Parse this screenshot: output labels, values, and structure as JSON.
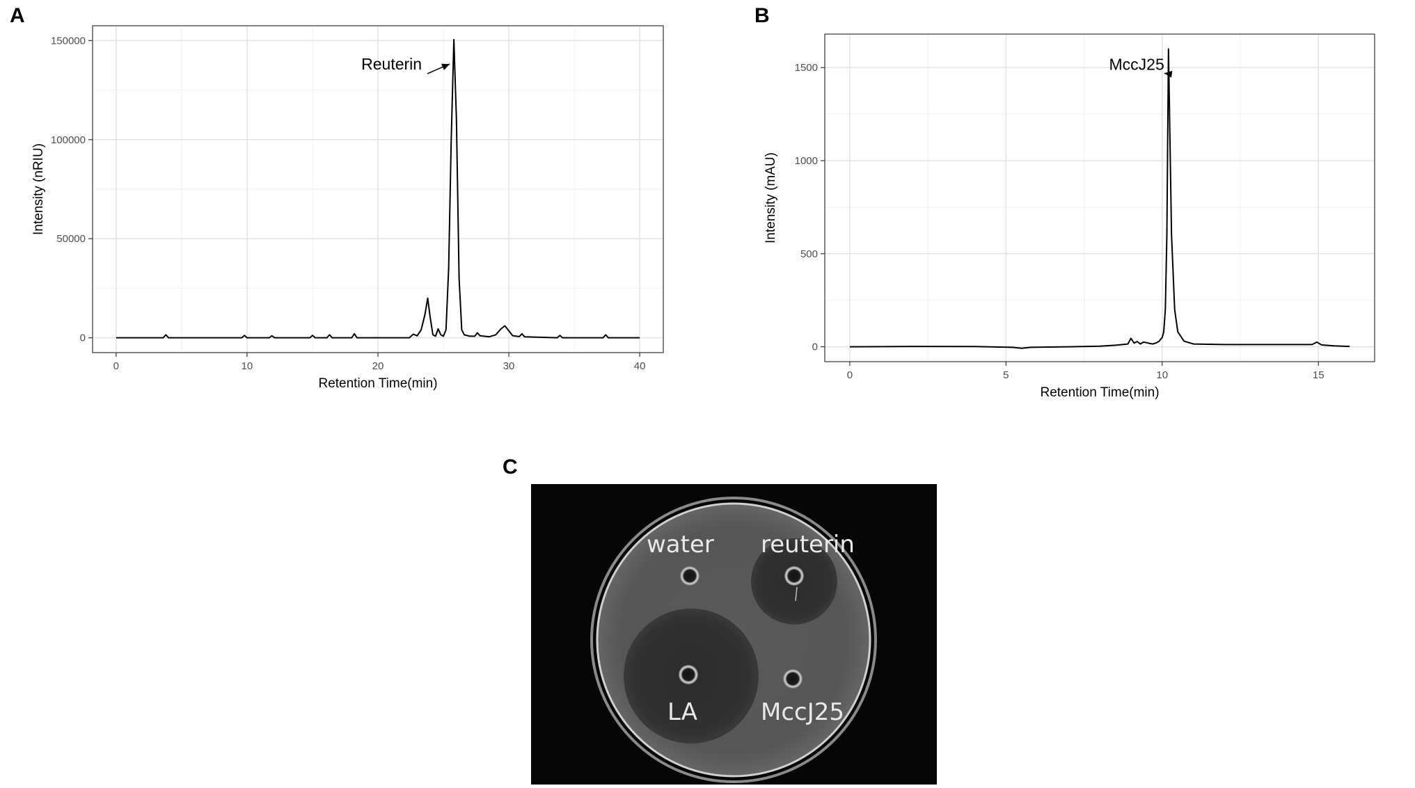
{
  "panels": {
    "a": {
      "letter": "A"
    },
    "b": {
      "letter": "B"
    },
    "c": {
      "letter": "C"
    }
  },
  "chart_data": [
    {
      "type": "line",
      "title": "",
      "xlabel": "Retention Time(min)",
      "ylabel": "Intensity (nRIU)",
      "xlim": [
        -1.8,
        41.8
      ],
      "ylim": [
        -7500,
        157500
      ],
      "xticks": [
        0,
        10,
        20,
        30,
        40
      ],
      "yticks": [
        0,
        50000,
        100000,
        150000
      ],
      "grid": true,
      "annotation": {
        "text": "Reuterin",
        "x": 25.8,
        "y": 150500
      },
      "series": [
        {
          "x": [
            0,
            3.6,
            3.8,
            4.0,
            9.6,
            9.8,
            10.0,
            11.7,
            11.9,
            12.1,
            14.8,
            15.0,
            15.2,
            16.1,
            16.3,
            16.5,
            18.0,
            18.2,
            18.4,
            22.4,
            22.7,
            23.0,
            23.3,
            23.6,
            23.8,
            24.0,
            24.2,
            24.4,
            24.6,
            24.8,
            25.0,
            25.2,
            25.4,
            25.6,
            25.8,
            26.0,
            26.2,
            26.4,
            26.6,
            27.0,
            27.4,
            27.6,
            27.8,
            28.5,
            29.0,
            29.4,
            29.7,
            30.0,
            30.3,
            30.8,
            31.0,
            31.2,
            33.7,
            33.9,
            34.1,
            37.2,
            37.4,
            37.6,
            40.0
          ],
          "y": [
            0,
            0,
            1500,
            0,
            0,
            1200,
            0,
            0,
            1000,
            0,
            0,
            1200,
            0,
            0,
            1500,
            0,
            0,
            2000,
            0,
            0,
            1800,
            1000,
            4000,
            12000,
            20000,
            10000,
            1500,
            800,
            4500,
            1500,
            800,
            4000,
            35000,
            100000,
            150500,
            110000,
            30000,
            4000,
            1500,
            800,
            800,
            2500,
            1000,
            500,
            1500,
            4500,
            6000,
            3500,
            1000,
            600,
            2000,
            500,
            0,
            1200,
            0,
            0,
            1500,
            0,
            0
          ]
        }
      ]
    },
    {
      "type": "line",
      "title": "",
      "xlabel": "Retention Time(min)",
      "ylabel": "Intensity (mAU)",
      "xlim": [
        -0.8,
        16.8
      ],
      "ylim": [
        -80,
        1680
      ],
      "xticks": [
        0,
        5,
        10,
        15
      ],
      "yticks": [
        0,
        500,
        1000,
        1500
      ],
      "grid": true,
      "annotation": {
        "text": "MccJ25",
        "x": 10.2,
        "y": 1600
      },
      "series": [
        {
          "x": [
            0,
            2.0,
            4.0,
            5.2,
            5.5,
            5.8,
            7.0,
            8.0,
            8.5,
            8.9,
            9.0,
            9.1,
            9.2,
            9.3,
            9.4,
            9.5,
            9.6,
            9.7,
            9.8,
            9.9,
            10.0,
            10.05,
            10.1,
            10.15,
            10.2,
            10.25,
            10.3,
            10.4,
            10.5,
            10.7,
            11.0,
            12.0,
            13.0,
            14.0,
            14.8,
            14.95,
            15.1,
            15.5,
            16.0
          ],
          "y": [
            0,
            2,
            1,
            -3,
            -8,
            -3,
            0,
            3,
            8,
            15,
            45,
            20,
            28,
            15,
            25,
            22,
            18,
            15,
            20,
            30,
            50,
            80,
            200,
            600,
            1600,
            1100,
            600,
            200,
            80,
            30,
            15,
            12,
            12,
            12,
            12,
            25,
            10,
            5,
            2
          ]
        }
      ]
    }
  ],
  "photo": {
    "labels": {
      "water": "water",
      "reuterin": "reuterin",
      "la": "LA",
      "mccj25": "MccJ25"
    }
  }
}
